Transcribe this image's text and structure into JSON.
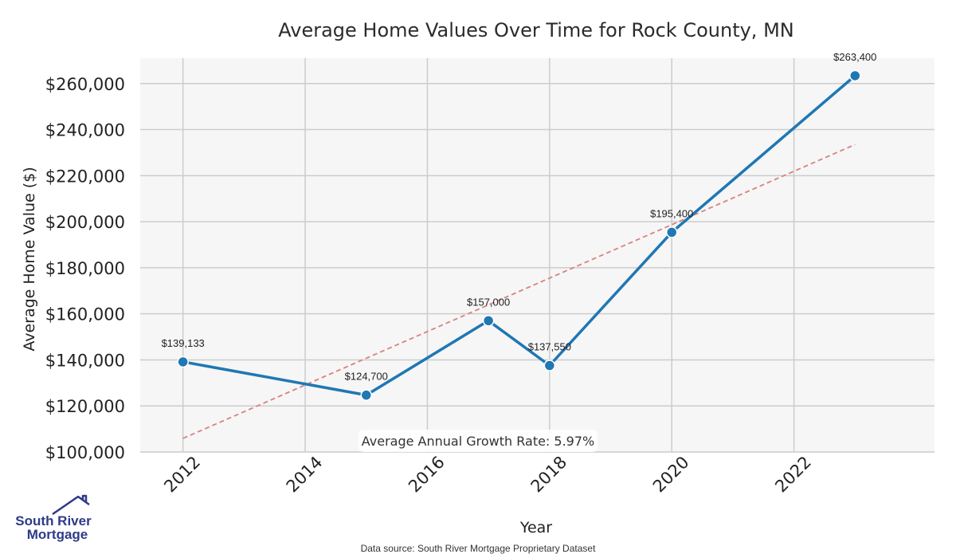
{
  "chart_data": {
    "type": "line",
    "title": "Average Home Values Over Time for Rock County, MN",
    "xlabel": "Year",
    "ylabel": "Average Home Value ($)",
    "xlim": [
      2011.3,
      2024.3
    ],
    "ylim": [
      100000,
      271000
    ],
    "x_ticks": [
      2012,
      2014,
      2016,
      2018,
      2020,
      2022
    ],
    "y_ticks": [
      100000,
      120000,
      140000,
      160000,
      180000,
      200000,
      220000,
      240000,
      260000
    ],
    "y_tick_labels": [
      "$100,000",
      "$120,000",
      "$140,000",
      "$160,000",
      "$180,000",
      "$200,000",
      "$220,000",
      "$240,000",
      "$260,000"
    ],
    "grid": true,
    "series": [
      {
        "name": "Average Home Value",
        "color": "#1f77b4",
        "x": [
          2012,
          2015,
          2017,
          2018,
          2020,
          2023
        ],
        "values": [
          139133,
          124700,
          157000,
          137550,
          195400,
          263400
        ],
        "labels": [
          "$139,133",
          "$124,700",
          "$157,000",
          "$137,550",
          "$195,400",
          "$263,400"
        ]
      },
      {
        "name": "Trend",
        "color": "#d9817f",
        "style": "dashed",
        "x": [
          2012,
          2023
        ],
        "values": [
          105900,
          233500
        ]
      }
    ],
    "annotation": "Average Annual Growth Rate: 5.97%"
  },
  "footer": {
    "source": "Data source: South River Mortgage Proprietary Dataset"
  },
  "logo": {
    "line1": "South River",
    "line2": "Mortgage"
  }
}
